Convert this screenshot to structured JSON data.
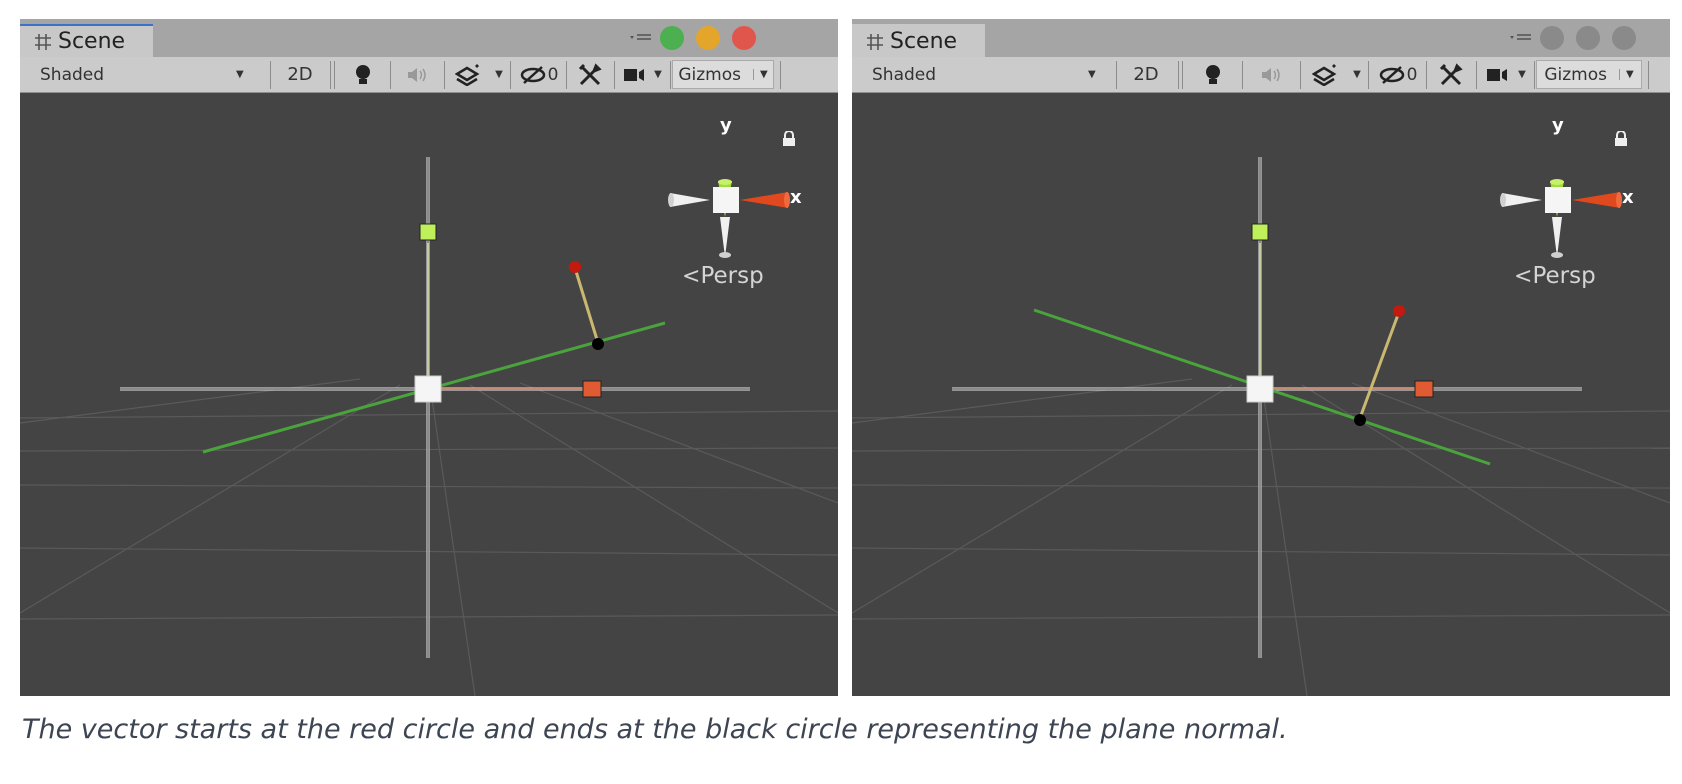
{
  "panels": [
    {
      "tab": {
        "label": "Scene",
        "icon": "grid-icon",
        "active": true
      },
      "window_buttons": {
        "colors": [
          "#4caf50",
          "#e4a62a",
          "#e0564c"
        ]
      },
      "toolbar": {
        "shade_mode": "Shaded",
        "mode_2d": "2D",
        "hidden_count": "0",
        "gizmos": "Gizmos",
        "icons": [
          "lightbulb-icon",
          "audio-icon",
          "effects-icon",
          "visibility-icon",
          "tools-icon",
          "camera-icon"
        ]
      },
      "orientation": {
        "x": "x",
        "y": "y",
        "projection": "Persp"
      },
      "scene": {
        "plane_line": "tilted upward to the right",
        "normal_end": "above plane line"
      }
    },
    {
      "tab": {
        "label": "Scene",
        "icon": "grid-icon",
        "active": false
      },
      "window_buttons": {
        "colors": [
          "#8a8a8a",
          "#8a8a8a",
          "#8a8a8a"
        ]
      },
      "toolbar": {
        "shade_mode": "Shaded",
        "mode_2d": "2D",
        "hidden_count": "0",
        "gizmos": "Gizmos",
        "icons": [
          "lightbulb-icon",
          "audio-icon",
          "effects-icon",
          "visibility-icon",
          "tools-icon",
          "camera-icon"
        ]
      },
      "orientation": {
        "x": "x",
        "y": "y",
        "projection": "Persp"
      },
      "scene": {
        "plane_line": "tilted downward to the right",
        "normal_end": "below plane line"
      }
    }
  ],
  "caption": "The vector starts at the red circle and ends at the black circle representing the plane normal.",
  "colors": {
    "viewport_bg": "#444444",
    "plane_line": "#4aa33c",
    "normal_vector": "#c9b870",
    "start_point": "#c4190f",
    "end_point": "#000000",
    "x_handle": "#e05a32",
    "y_handle": "#bff05a"
  }
}
